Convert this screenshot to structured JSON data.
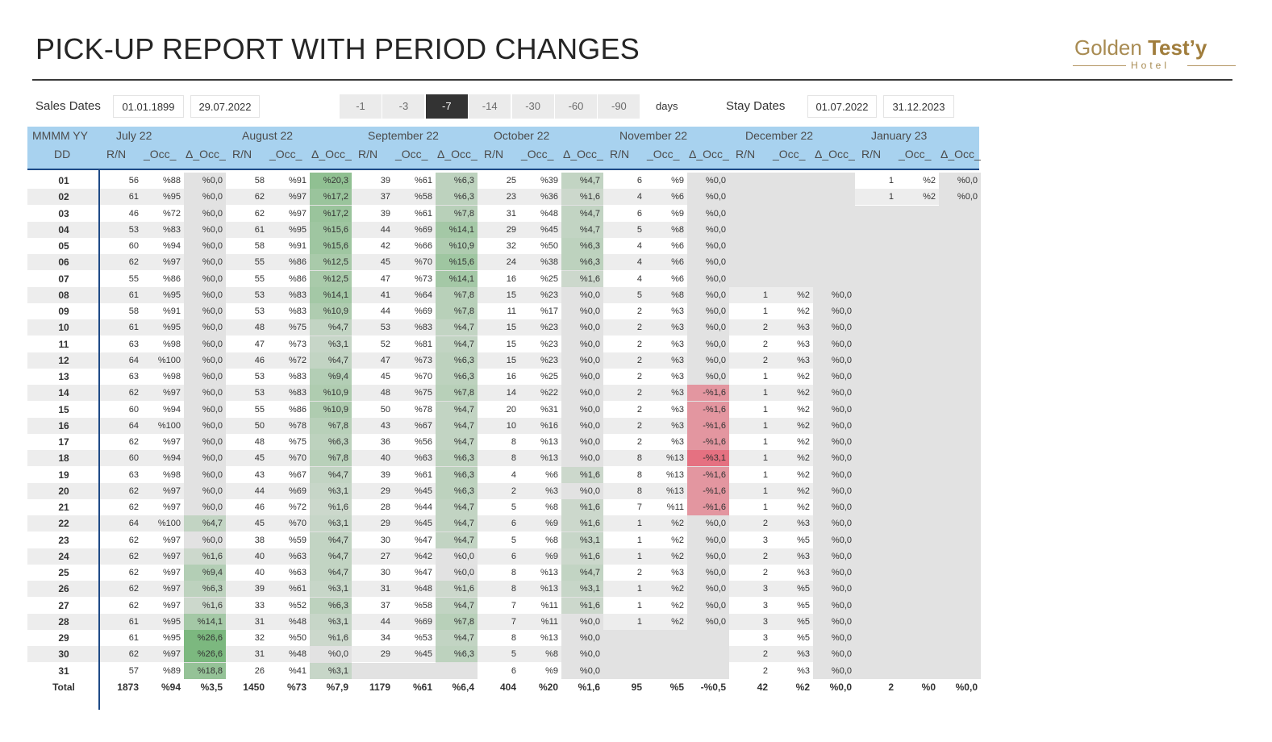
{
  "header": {
    "title": "PICK-UP REPORT WITH PERIOD CHANGES"
  },
  "logo": {
    "main": "Golden ",
    "bold": "Test’y",
    "sub": "Hotel"
  },
  "filters": {
    "sales_label": "Sales Dates",
    "sales_from": "01.01.1899",
    "sales_to": "29.07.2022",
    "days_label": "days",
    "stay_label": "Stay Dates",
    "stay_from": "01.07.2022",
    "stay_to": "31.12.2023"
  },
  "periods": {
    "options": [
      "-1",
      "-3",
      "-7",
      "-14",
      "-30",
      "-60",
      "-90"
    ],
    "selected": "-7"
  },
  "table": {
    "corner_top": "MMMM YY",
    "corner_bottom": "DD",
    "sub_headers": [
      "R/N",
      "_Occ_",
      "Δ_Occ_"
    ],
    "months": [
      "July 22",
      "August 22",
      "September 22",
      "October 22",
      "November 22",
      "December 22",
      "January 23"
    ],
    "days": [
      "01",
      "02",
      "03",
      "04",
      "05",
      "06",
      "07",
      "08",
      "09",
      "10",
      "11",
      "12",
      "13",
      "14",
      "15",
      "16",
      "17",
      "18",
      "19",
      "20",
      "21",
      "22",
      "23",
      "24",
      "25",
      "26",
      "27",
      "28",
      "29",
      "30",
      "31"
    ],
    "rows": [
      [
        "56",
        "%88",
        "%0,0",
        "58",
        "%91",
        "%20,3",
        "39",
        "%61",
        "%6,3",
        "25",
        "%39",
        "%4,7",
        "6",
        "%9",
        "%0,0",
        "",
        "",
        "",
        "1",
        "%2",
        "%0,0"
      ],
      [
        "61",
        "%95",
        "%0,0",
        "62",
        "%97",
        "%17,2",
        "37",
        "%58",
        "%6,3",
        "23",
        "%36",
        "%1,6",
        "4",
        "%6",
        "%0,0",
        "",
        "",
        "",
        "1",
        "%2",
        "%0,0"
      ],
      [
        "46",
        "%72",
        "%0,0",
        "62",
        "%97",
        "%17,2",
        "39",
        "%61",
        "%7,8",
        "31",
        "%48",
        "%4,7",
        "6",
        "%9",
        "%0,0",
        "",
        "",
        "",
        "",
        "",
        ""
      ],
      [
        "53",
        "%83",
        "%0,0",
        "61",
        "%95",
        "%15,6",
        "44",
        "%69",
        "%14,1",
        "29",
        "%45",
        "%4,7",
        "5",
        "%8",
        "%0,0",
        "",
        "",
        "",
        "",
        "",
        ""
      ],
      [
        "60",
        "%94",
        "%0,0",
        "58",
        "%91",
        "%15,6",
        "42",
        "%66",
        "%10,9",
        "32",
        "%50",
        "%6,3",
        "4",
        "%6",
        "%0,0",
        "",
        "",
        "",
        "",
        "",
        ""
      ],
      [
        "62",
        "%97",
        "%0,0",
        "55",
        "%86",
        "%12,5",
        "45",
        "%70",
        "%15,6",
        "24",
        "%38",
        "%6,3",
        "4",
        "%6",
        "%0,0",
        "",
        "",
        "",
        "",
        "",
        ""
      ],
      [
        "55",
        "%86",
        "%0,0",
        "55",
        "%86",
        "%12,5",
        "47",
        "%73",
        "%14,1",
        "16",
        "%25",
        "%1,6",
        "4",
        "%6",
        "%0,0",
        "",
        "",
        "",
        "",
        "",
        ""
      ],
      [
        "61",
        "%95",
        "%0,0",
        "53",
        "%83",
        "%14,1",
        "41",
        "%64",
        "%7,8",
        "15",
        "%23",
        "%0,0",
        "5",
        "%8",
        "%0,0",
        "1",
        "%2",
        "%0,0",
        "",
        "",
        ""
      ],
      [
        "58",
        "%91",
        "%0,0",
        "53",
        "%83",
        "%10,9",
        "44",
        "%69",
        "%7,8",
        "11",
        "%17",
        "%0,0",
        "2",
        "%3",
        "%0,0",
        "1",
        "%2",
        "%0,0",
        "",
        "",
        ""
      ],
      [
        "61",
        "%95",
        "%0,0",
        "48",
        "%75",
        "%4,7",
        "53",
        "%83",
        "%4,7",
        "15",
        "%23",
        "%0,0",
        "2",
        "%3",
        "%0,0",
        "2",
        "%3",
        "%0,0",
        "",
        "",
        ""
      ],
      [
        "63",
        "%98",
        "%0,0",
        "47",
        "%73",
        "%3,1",
        "52",
        "%81",
        "%4,7",
        "15",
        "%23",
        "%0,0",
        "2",
        "%3",
        "%0,0",
        "2",
        "%3",
        "%0,0",
        "",
        "",
        ""
      ],
      [
        "64",
        "%100",
        "%0,0",
        "46",
        "%72",
        "%4,7",
        "47",
        "%73",
        "%6,3",
        "15",
        "%23",
        "%0,0",
        "2",
        "%3",
        "%0,0",
        "2",
        "%3",
        "%0,0",
        "",
        "",
        ""
      ],
      [
        "63",
        "%98",
        "%0,0",
        "53",
        "%83",
        "%9,4",
        "45",
        "%70",
        "%6,3",
        "16",
        "%25",
        "%0,0",
        "2",
        "%3",
        "%0,0",
        "1",
        "%2",
        "%0,0",
        "",
        "",
        ""
      ],
      [
        "62",
        "%97",
        "%0,0",
        "53",
        "%83",
        "%10,9",
        "48",
        "%75",
        "%7,8",
        "14",
        "%22",
        "%0,0",
        "2",
        "%3",
        "-%1,6",
        "1",
        "%2",
        "%0,0",
        "",
        "",
        ""
      ],
      [
        "60",
        "%94",
        "%0,0",
        "55",
        "%86",
        "%10,9",
        "50",
        "%78",
        "%4,7",
        "20",
        "%31",
        "%0,0",
        "2",
        "%3",
        "-%1,6",
        "1",
        "%2",
        "%0,0",
        "",
        "",
        ""
      ],
      [
        "64",
        "%100",
        "%0,0",
        "50",
        "%78",
        "%7,8",
        "43",
        "%67",
        "%4,7",
        "10",
        "%16",
        "%0,0",
        "2",
        "%3",
        "-%1,6",
        "1",
        "%2",
        "%0,0",
        "",
        "",
        ""
      ],
      [
        "62",
        "%97",
        "%0,0",
        "48",
        "%75",
        "%6,3",
        "36",
        "%56",
        "%4,7",
        "8",
        "%13",
        "%0,0",
        "2",
        "%3",
        "-%1,6",
        "1",
        "%2",
        "%0,0",
        "",
        "",
        ""
      ],
      [
        "60",
        "%94",
        "%0,0",
        "45",
        "%70",
        "%7,8",
        "40",
        "%63",
        "%6,3",
        "8",
        "%13",
        "%0,0",
        "8",
        "%13",
        "-%3,1",
        "1",
        "%2",
        "%0,0",
        "",
        "",
        ""
      ],
      [
        "63",
        "%98",
        "%0,0",
        "43",
        "%67",
        "%4,7",
        "39",
        "%61",
        "%6,3",
        "4",
        "%6",
        "%1,6",
        "8",
        "%13",
        "-%1,6",
        "1",
        "%2",
        "%0,0",
        "",
        "",
        ""
      ],
      [
        "62",
        "%97",
        "%0,0",
        "44",
        "%69",
        "%3,1",
        "29",
        "%45",
        "%6,3",
        "2",
        "%3",
        "%0,0",
        "8",
        "%13",
        "-%1,6",
        "1",
        "%2",
        "%0,0",
        "",
        "",
        ""
      ],
      [
        "62",
        "%97",
        "%0,0",
        "46",
        "%72",
        "%1,6",
        "28",
        "%44",
        "%4,7",
        "5",
        "%8",
        "%1,6",
        "7",
        "%11",
        "-%1,6",
        "1",
        "%2",
        "%0,0",
        "",
        "",
        ""
      ],
      [
        "64",
        "%100",
        "%4,7",
        "45",
        "%70",
        "%3,1",
        "29",
        "%45",
        "%4,7",
        "6",
        "%9",
        "%1,6",
        "1",
        "%2",
        "%0,0",
        "2",
        "%3",
        "%0,0",
        "",
        "",
        ""
      ],
      [
        "62",
        "%97",
        "%0,0",
        "38",
        "%59",
        "%4,7",
        "30",
        "%47",
        "%4,7",
        "5",
        "%8",
        "%3,1",
        "1",
        "%2",
        "%0,0",
        "3",
        "%5",
        "%0,0",
        "",
        "",
        ""
      ],
      [
        "62",
        "%97",
        "%1,6",
        "40",
        "%63",
        "%4,7",
        "27",
        "%42",
        "%0,0",
        "6",
        "%9",
        "%1,6",
        "1",
        "%2",
        "%0,0",
        "2",
        "%3",
        "%0,0",
        "",
        "",
        ""
      ],
      [
        "62",
        "%97",
        "%9,4",
        "40",
        "%63",
        "%4,7",
        "30",
        "%47",
        "%0,0",
        "8",
        "%13",
        "%4,7",
        "2",
        "%3",
        "%0,0",
        "2",
        "%3",
        "%0,0",
        "",
        "",
        ""
      ],
      [
        "62",
        "%97",
        "%6,3",
        "39",
        "%61",
        "%3,1",
        "31",
        "%48",
        "%1,6",
        "8",
        "%13",
        "%3,1",
        "1",
        "%2",
        "%0,0",
        "3",
        "%5",
        "%0,0",
        "",
        "",
        ""
      ],
      [
        "62",
        "%97",
        "%1,6",
        "33",
        "%52",
        "%6,3",
        "37",
        "%58",
        "%4,7",
        "7",
        "%11",
        "%1,6",
        "1",
        "%2",
        "%0,0",
        "3",
        "%5",
        "%0,0",
        "",
        "",
        ""
      ],
      [
        "61",
        "%95",
        "%14,1",
        "31",
        "%48",
        "%3,1",
        "44",
        "%69",
        "%7,8",
        "7",
        "%11",
        "%0,0",
        "1",
        "%2",
        "%0,0",
        "3",
        "%5",
        "%0,0",
        "",
        "",
        ""
      ],
      [
        "61",
        "%95",
        "%26,6",
        "32",
        "%50",
        "%1,6",
        "34",
        "%53",
        "%4,7",
        "8",
        "%13",
        "%0,0",
        "",
        "",
        "",
        "3",
        "%5",
        "%0,0",
        "",
        "",
        ""
      ],
      [
        "62",
        "%97",
        "%26,6",
        "31",
        "%48",
        "%0,0",
        "29",
        "%45",
        "%6,3",
        "5",
        "%8",
        "%0,0",
        "",
        "",
        "",
        "2",
        "%3",
        "%0,0",
        "",
        "",
        ""
      ],
      [
        "57",
        "%89",
        "%18,8",
        "26",
        "%41",
        "%3,1",
        "",
        "",
        "",
        "6",
        "%9",
        "%0,0",
        "",
        "",
        "",
        "2",
        "%3",
        "%0,0",
        "",
        "",
        ""
      ]
    ],
    "total_label": "Total",
    "totals": [
      "1873",
      "%94",
      "%3,5",
      "1450",
      "%73",
      "%7,9",
      "1179",
      "%61",
      "%6,4",
      "404",
      "%20",
      "%1,6",
      "95",
      "%5",
      "-%0,5",
      "42",
      "%2",
      "%0,0",
      "2",
      "%0",
      "%0,0"
    ],
    "colors": {
      "positive": "#43a047",
      "negative": "#e53950",
      "header": "#a8d2ef",
      "header_rule": "#1e4a86"
    }
  }
}
